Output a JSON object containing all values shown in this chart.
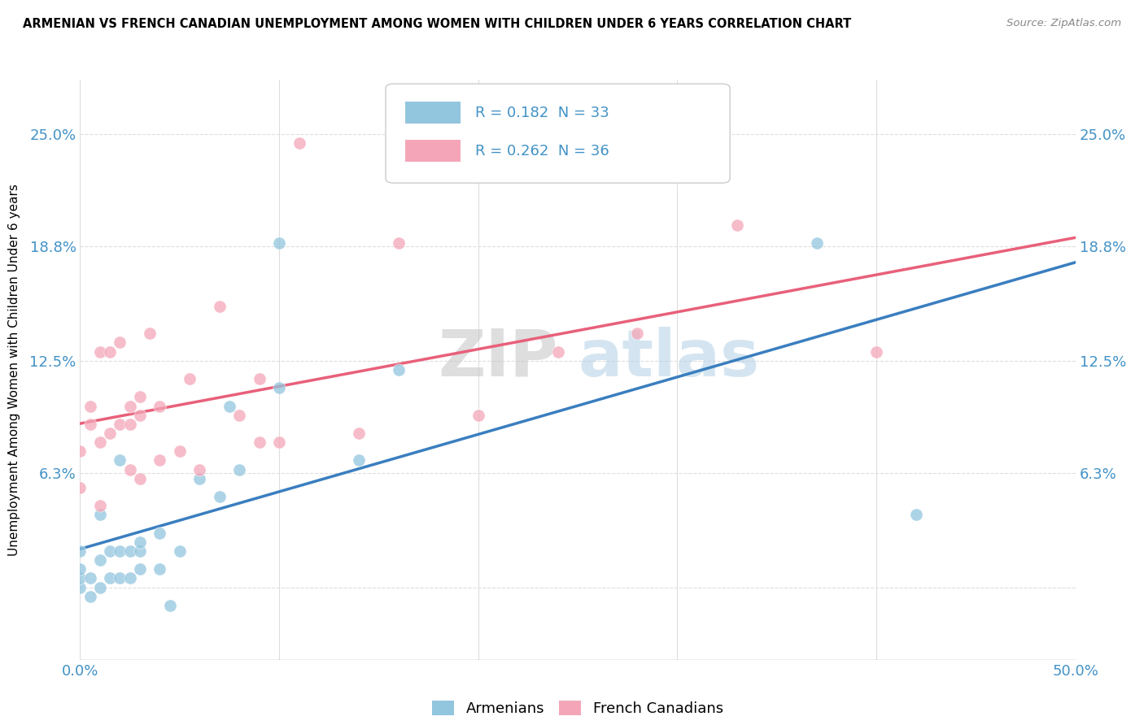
{
  "title": "ARMENIAN VS FRENCH CANADIAN UNEMPLOYMENT AMONG WOMEN WITH CHILDREN UNDER 6 YEARS CORRELATION CHART",
  "source": "Source: ZipAtlas.com",
  "ylabel": "Unemployment Among Women with Children Under 6 years",
  "xlim": [
    0.0,
    0.5
  ],
  "ylim": [
    -0.04,
    0.28
  ],
  "yticks": [
    0.0,
    0.063,
    0.125,
    0.188,
    0.25
  ],
  "ytick_labels": [
    "",
    "6.3%",
    "12.5%",
    "18.8%",
    "25.0%"
  ],
  "xtick_positions": [
    0.0,
    0.1,
    0.2,
    0.3,
    0.4,
    0.5
  ],
  "xtick_labels": [
    "0.0%",
    "",
    "",
    "",
    "",
    "50.0%"
  ],
  "r_armenian": 0.182,
  "n_armenian": 33,
  "r_french": 0.262,
  "n_french": 36,
  "color_armenian": "#92c5de",
  "color_french": "#f4a6b8",
  "color_line_armenian": "#3a7ebf",
  "color_line_french": "#e8607a",
  "color_text": "#4292c6",
  "armenian_x": [
    0.0,
    0.0,
    0.0,
    0.0,
    0.005,
    0.005,
    0.01,
    0.01,
    0.01,
    0.015,
    0.015,
    0.02,
    0.02,
    0.02,
    0.025,
    0.025,
    0.03,
    0.03,
    0.03,
    0.04,
    0.04,
    0.045,
    0.05,
    0.06,
    0.07,
    0.075,
    0.08,
    0.1,
    0.1,
    0.14,
    0.16,
    0.37,
    0.42
  ],
  "armenian_y": [
    0.0,
    0.005,
    0.01,
    0.02,
    -0.005,
    0.005,
    0.0,
    0.015,
    0.04,
    0.005,
    0.02,
    0.005,
    0.02,
    0.07,
    0.005,
    0.02,
    0.01,
    0.02,
    0.025,
    0.01,
    0.03,
    -0.01,
    0.02,
    0.06,
    0.05,
    0.1,
    0.065,
    0.11,
    0.19,
    0.07,
    0.12,
    0.19,
    0.04
  ],
  "french_x": [
    0.0,
    0.0,
    0.005,
    0.005,
    0.01,
    0.01,
    0.01,
    0.015,
    0.015,
    0.02,
    0.02,
    0.025,
    0.025,
    0.025,
    0.03,
    0.03,
    0.03,
    0.035,
    0.04,
    0.04,
    0.05,
    0.055,
    0.06,
    0.07,
    0.08,
    0.09,
    0.09,
    0.1,
    0.11,
    0.14,
    0.16,
    0.2,
    0.24,
    0.28,
    0.33,
    0.4
  ],
  "french_y": [
    0.055,
    0.075,
    0.09,
    0.1,
    0.045,
    0.08,
    0.13,
    0.085,
    0.13,
    0.09,
    0.135,
    0.065,
    0.09,
    0.1,
    0.06,
    0.095,
    0.105,
    0.14,
    0.07,
    0.1,
    0.075,
    0.115,
    0.065,
    0.155,
    0.095,
    0.08,
    0.115,
    0.08,
    0.245,
    0.085,
    0.19,
    0.095,
    0.13,
    0.14,
    0.2,
    0.13
  ],
  "watermark_zip": "ZIP",
  "watermark_atlas": "atlas",
  "grid_color": "#dddddd",
  "background_color": "#ffffff"
}
